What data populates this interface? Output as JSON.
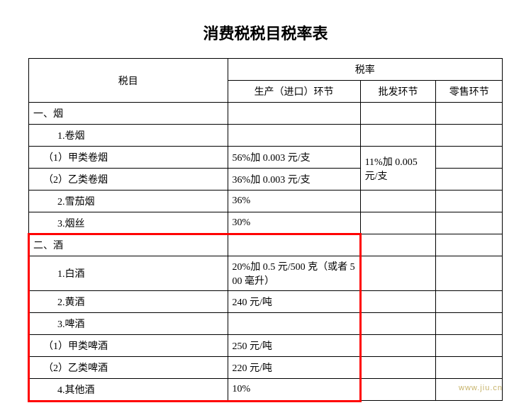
{
  "title": "消费税税目税率表",
  "headers": {
    "item": "税目",
    "rate_group": "税率",
    "production": "生产（进口）环节",
    "wholesale": "批发环节",
    "retail": "零售环节"
  },
  "rows": [
    {
      "item": "一、烟",
      "indent": 0,
      "production": "",
      "wholesale": "",
      "retail": ""
    },
    {
      "item": "1.卷烟",
      "indent": 1,
      "production": "",
      "wholesale": "",
      "retail": ""
    },
    {
      "item": "（1）甲类卷烟",
      "indent": 2,
      "production": "56%加 0.003 元/支",
      "wholesale_rowspan_start": true,
      "wholesale": "11%加 0.005 元/支",
      "retail": ""
    },
    {
      "item": "（2）乙类卷烟",
      "indent": 2,
      "production": "36%加 0.003 元/支",
      "wholesale_skip": true,
      "retail": ""
    },
    {
      "item": "2.雪茄烟",
      "indent": 1,
      "production": "36%",
      "wholesale": "",
      "retail": ""
    },
    {
      "item": "3.烟丝",
      "indent": 1,
      "production": "30%",
      "wholesale": "",
      "retail": ""
    },
    {
      "item": "二、酒",
      "indent": 0,
      "production": "",
      "wholesale": "",
      "retail": "",
      "hl_start": true
    },
    {
      "item": "1.白酒",
      "indent": 1,
      "production": "20%加 0.5 元/500 克（或者 500 毫升）",
      "wholesale": "",
      "retail": ""
    },
    {
      "item": "2.黄酒",
      "indent": 1,
      "production": "240 元/吨",
      "wholesale": "",
      "retail": ""
    },
    {
      "item": "3.啤酒",
      "indent": 1,
      "production": "",
      "wholesale": "",
      "retail": ""
    },
    {
      "item": "（1）甲类啤酒",
      "indent": 2,
      "production": "250 元/吨",
      "wholesale": "",
      "retail": ""
    },
    {
      "item": "（2）乙类啤酒",
      "indent": 2,
      "production": "220 元/吨",
      "wholesale": "",
      "retail": ""
    },
    {
      "item": "4.其他酒",
      "indent": 1,
      "production": "10%",
      "wholesale": "",
      "retail": "",
      "hl_end": true
    }
  ],
  "highlight": {
    "color": "#ff0000"
  },
  "watermark": "www.jiu.cn"
}
